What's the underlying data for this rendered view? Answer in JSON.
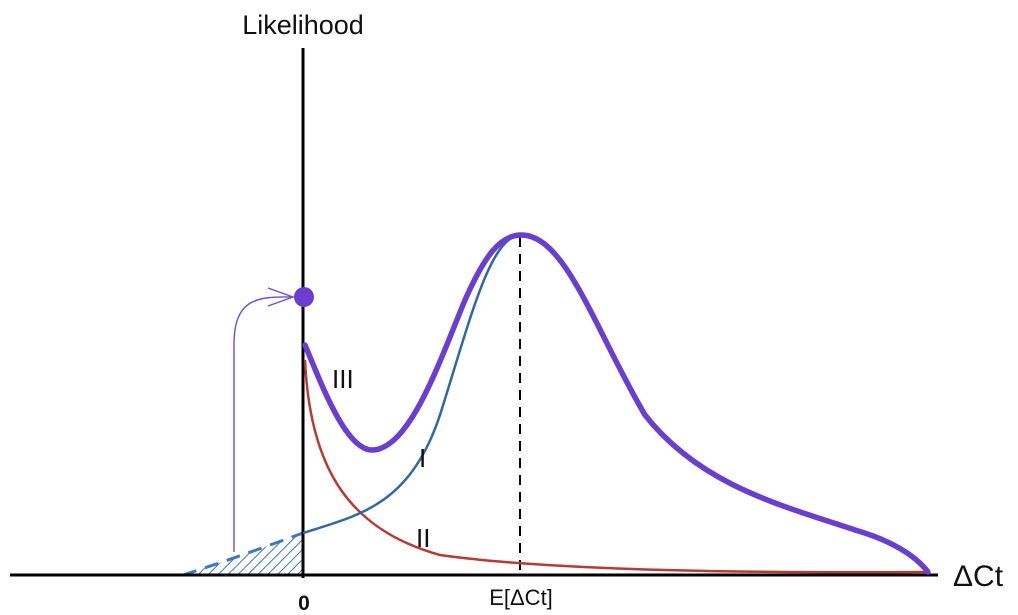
{
  "axes": {
    "y_label": "Likelihood",
    "x_label": "ΔCt",
    "origin_label": "0",
    "expected_label": "E[ΔCt]"
  },
  "curves": [
    {
      "label": "I",
      "color": "#2f68a8"
    },
    {
      "label": "II",
      "color": "#b83a30"
    },
    {
      "label": "III",
      "color": "#6a3fd0"
    }
  ],
  "colors": {
    "axis": "#000000",
    "hatch": "#3a78c0",
    "point": "#6a3fd0",
    "arrow": "#6a4fd8"
  }
}
